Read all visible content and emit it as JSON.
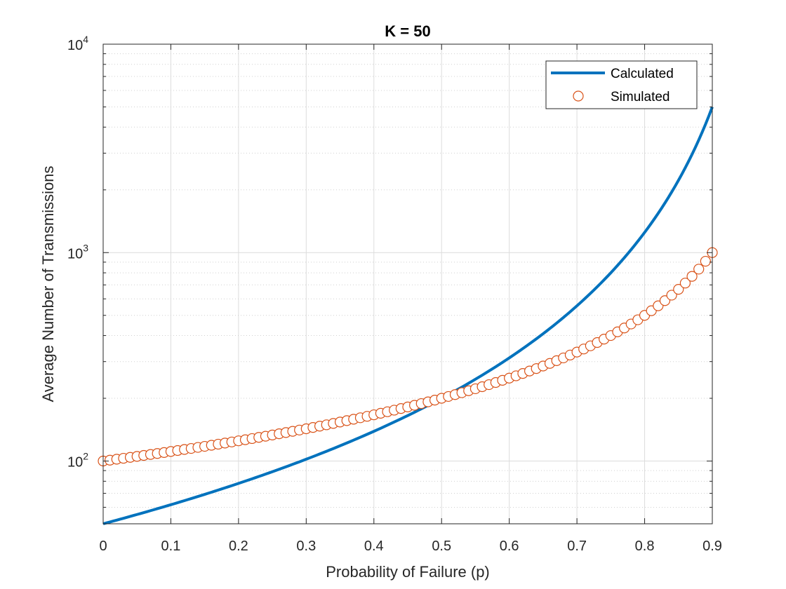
{
  "chart_data": {
    "type": "line",
    "title": "K = 50",
    "xlabel": "Probability of Failure (p)",
    "ylabel": "Average Number of Transmissions",
    "xlim": [
      0,
      0.9
    ],
    "ylim": [
      50,
      10000
    ],
    "yscale": "log",
    "grid": true,
    "minor_grid": true,
    "legend_placement": "top-right",
    "x_ticks": [
      "0",
      "0.1",
      "0.2",
      "0.3",
      "0.4",
      "0.5",
      "0.6",
      "0.7",
      "0.8",
      "0.9"
    ],
    "x_tick_values": [
      0,
      0.1,
      0.2,
      0.3,
      0.4,
      0.5,
      0.6,
      0.7,
      0.8,
      0.9
    ],
    "y_ticks": [
      {
        "value": 100,
        "base": "10",
        "exp": "2"
      },
      {
        "value": 1000,
        "base": "10",
        "exp": "3"
      },
      {
        "value": 10000,
        "base": "10",
        "exp": "4"
      }
    ],
    "series": [
      {
        "name": "Calculated",
        "style": "line",
        "color": "#0072BD",
        "formula": "y = 50 / (1 - p)^2",
        "x": [
          0,
          0.05,
          0.1,
          0.15,
          0.2,
          0.25,
          0.3,
          0.35,
          0.4,
          0.45,
          0.5,
          0.55,
          0.6,
          0.65,
          0.7,
          0.75,
          0.8,
          0.85,
          0.9
        ],
        "y": [
          50,
          55.4,
          61.7,
          69.2,
          78.1,
          88.9,
          102.0,
          118.3,
          138.9,
          165.3,
          200,
          246.9,
          312.5,
          408.2,
          555.6,
          800,
          1250,
          2222,
          5000
        ]
      },
      {
        "name": "Simulated",
        "style": "marker",
        "marker": "circle",
        "color": "#D95319",
        "formula": "y = 100 / (1 - p)",
        "x_start": 0,
        "x_step": 0.01,
        "x_end": 0.9,
        "y_at": {
          "0": 100,
          "0.5": 200,
          "0.8": 500,
          "0.9": 1000
        }
      }
    ]
  }
}
